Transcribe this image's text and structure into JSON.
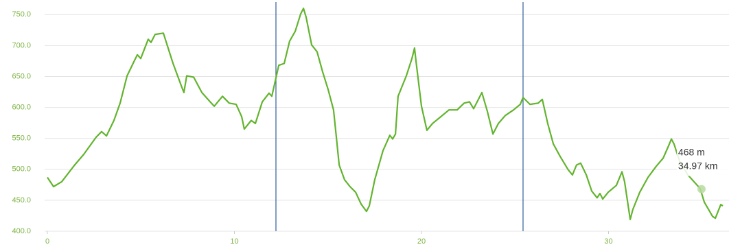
{
  "chart_data": {
    "type": "line",
    "x": [
      0.0,
      0.33,
      0.77,
      1.43,
      1.94,
      2.61,
      2.9,
      3.16,
      3.56,
      3.89,
      4.26,
      4.66,
      4.81,
      4.99,
      5.39,
      5.54,
      5.76,
      6.2,
      6.72,
      7.16,
      7.3,
      7.45,
      7.82,
      8.26,
      8.7,
      8.92,
      9.36,
      9.72,
      10.09,
      10.39,
      10.53,
      10.9,
      11.12,
      11.49,
      11.85,
      12.0,
      12.37,
      12.66,
      12.95,
      13.25,
      13.54,
      13.69,
      13.83,
      14.13,
      14.42,
      14.72,
      15.01,
      15.3,
      15.45,
      15.6,
      15.89,
      16.18,
      16.48,
      16.77,
      17.06,
      17.21,
      17.5,
      17.94,
      18.31,
      18.46,
      18.61,
      18.75,
      19.19,
      19.49,
      19.63,
      19.71,
      20.0,
      20.29,
      20.59,
      21.03,
      21.47,
      21.91,
      22.28,
      22.57,
      22.79,
      23.23,
      23.52,
      23.82,
      24.11,
      24.48,
      24.92,
      25.28,
      25.43,
      25.8,
      26.24,
      26.46,
      26.75,
      27.05,
      27.41,
      27.85,
      28.07,
      28.29,
      28.51,
      28.81,
      29.1,
      29.39,
      29.54,
      29.69,
      29.98,
      30.42,
      30.72,
      30.86,
      31.16,
      31.3,
      31.67,
      32.11,
      32.55,
      32.92,
      33.21,
      33.36,
      33.5,
      33.8,
      34.24,
      34.9,
      35.12,
      35.56,
      35.71,
      36.0,
      36.11
    ],
    "series": [
      {
        "color": "#62b42e",
        "values": [
          487,
          472,
          480,
          506,
          524,
          552,
          561,
          554,
          579,
          607,
          651,
          676,
          685,
          679,
          710,
          705,
          718,
          720,
          671,
          635,
          624,
          651,
          649,
          624,
          609,
          602,
          618,
          607,
          605,
          585,
          565,
          579,
          574,
          609,
          623,
          618,
          668,
          671,
          707,
          723,
          751,
          760,
          746,
          701,
          690,
          657,
          629,
          596,
          552,
          507,
          483,
          472,
          463,
          444,
          432,
          441,
          483,
          530,
          555,
          549,
          557,
          618,
          651,
          679,
          696,
          674,
          602,
          563,
          574,
          585,
          596,
          596,
          607,
          609,
          598,
          624,
          594,
          557,
          574,
          587,
          596,
          605,
          616,
          605,
          607,
          613,
          574,
          541,
          521,
          499,
          491,
          507,
          510,
          491,
          465,
          454,
          461,
          452,
          463,
          474,
          496,
          480,
          419,
          435,
          463,
          487,
          505,
          518,
          538,
          549,
          541,
          513,
          491,
          469,
          447,
          424,
          421,
          443,
          441
        ]
      }
    ],
    "xlim": [
      0,
      36.11
    ],
    "ylim": [
      400,
      768
    ],
    "xticks": [
      0,
      10,
      20,
      30
    ],
    "yticks": [
      {
        "value": 400,
        "label": "400.0"
      },
      {
        "value": 450,
        "label": "450.0"
      },
      {
        "value": 500,
        "label": "500.0"
      },
      {
        "value": 550,
        "label": "550.0"
      },
      {
        "value": 600,
        "label": "600.0"
      },
      {
        "value": 650,
        "label": "650.0"
      },
      {
        "value": 700,
        "label": "700.0"
      },
      {
        "value": 750,
        "label": "750.0"
      }
    ],
    "grid": true,
    "vlines": [
      12.22,
      25.43
    ],
    "vline_color": "#2f5d9b",
    "tooltip": {
      "x": 34.97,
      "y": 468,
      "label_y": "468 m",
      "label_x": "34.97 km"
    }
  }
}
